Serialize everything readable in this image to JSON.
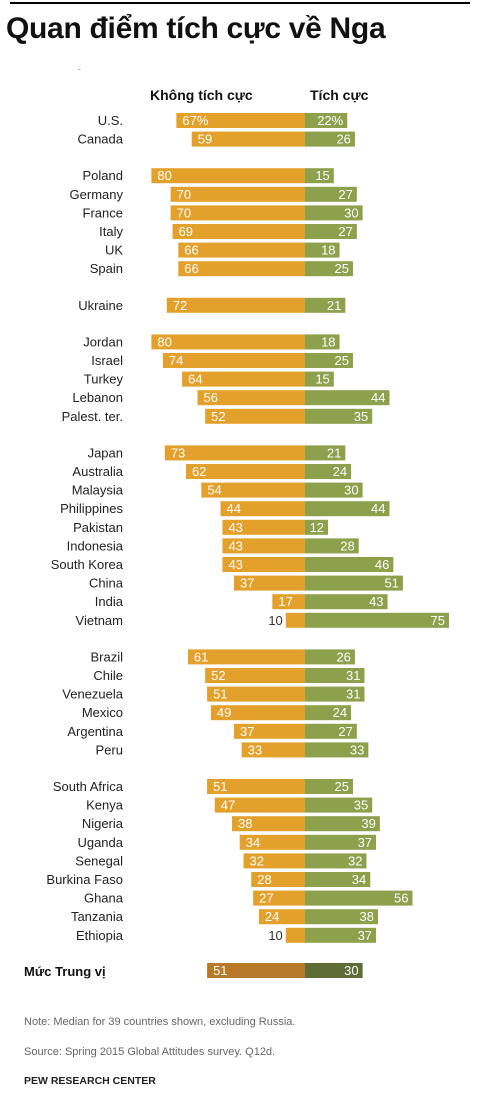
{
  "title": "Quan điểm tích cực về Nga",
  "headers": {
    "negative": "Không tích cực",
    "positive": "Tích cực"
  },
  "colors": {
    "negative": "#e3a12b",
    "positive": "#8da04c",
    "median_negative": "#b87a28",
    "median_positive": "#5f6c35"
  },
  "chart_data": {
    "type": "bar",
    "orientation": "horizontal-diverging",
    "series": [
      {
        "name": "Không tích cực",
        "direction": "left"
      },
      {
        "name": "Tích cực",
        "direction": "right"
      }
    ],
    "groups": [
      {
        "rows": [
          {
            "country": "U.S.",
            "neg": 67,
            "pos": 22,
            "neg_label": "67%",
            "pos_label": "22%"
          },
          {
            "country": "Canada",
            "neg": 59,
            "pos": 26,
            "neg_label": "59",
            "pos_label": "26"
          }
        ]
      },
      {
        "rows": [
          {
            "country": "Poland",
            "neg": 80,
            "pos": 15,
            "neg_label": "80",
            "pos_label": "15"
          },
          {
            "country": "Germany",
            "neg": 70,
            "pos": 27,
            "neg_label": "70",
            "pos_label": "27"
          },
          {
            "country": "France",
            "neg": 70,
            "pos": 30,
            "neg_label": "70",
            "pos_label": "30"
          },
          {
            "country": "Italy",
            "neg": 69,
            "pos": 27,
            "neg_label": "69",
            "pos_label": "27"
          },
          {
            "country": "UK",
            "neg": 66,
            "pos": 18,
            "neg_label": "66",
            "pos_label": "18"
          },
          {
            "country": "Spain",
            "neg": 66,
            "pos": 25,
            "neg_label": "66",
            "pos_label": "25"
          }
        ]
      },
      {
        "rows": [
          {
            "country": "Ukraine",
            "neg": 72,
            "pos": 21,
            "neg_label": "72",
            "pos_label": "21"
          }
        ]
      },
      {
        "rows": [
          {
            "country": "Jordan",
            "neg": 80,
            "pos": 18,
            "neg_label": "80",
            "pos_label": "18"
          },
          {
            "country": "Israel",
            "neg": 74,
            "pos": 25,
            "neg_label": "74",
            "pos_label": "25"
          },
          {
            "country": "Turkey",
            "neg": 64,
            "pos": 15,
            "neg_label": "64",
            "pos_label": "15"
          },
          {
            "country": "Lebanon",
            "neg": 56,
            "pos": 44,
            "neg_label": "56",
            "pos_label": "44"
          },
          {
            "country": "Palest. ter.",
            "neg": 52,
            "pos": 35,
            "neg_label": "52",
            "pos_label": "35"
          }
        ]
      },
      {
        "rows": [
          {
            "country": "Japan",
            "neg": 73,
            "pos": 21,
            "neg_label": "73",
            "pos_label": "21"
          },
          {
            "country": "Australia",
            "neg": 62,
            "pos": 24,
            "neg_label": "62",
            "pos_label": "24"
          },
          {
            "country": "Malaysia",
            "neg": 54,
            "pos": 30,
            "neg_label": "54",
            "pos_label": "30"
          },
          {
            "country": "Philippines",
            "neg": 44,
            "pos": 44,
            "neg_label": "44",
            "pos_label": "44"
          },
          {
            "country": "Pakistan",
            "neg": 43,
            "pos": 12,
            "neg_label": "43",
            "pos_label": "12"
          },
          {
            "country": "Indonesia",
            "neg": 43,
            "pos": 28,
            "neg_label": "43",
            "pos_label": "28"
          },
          {
            "country": "South Korea",
            "neg": 43,
            "pos": 46,
            "neg_label": "43",
            "pos_label": "46"
          },
          {
            "country": "China",
            "neg": 37,
            "pos": 51,
            "neg_label": "37",
            "pos_label": "51"
          },
          {
            "country": "India",
            "neg": 17,
            "pos": 43,
            "neg_label": "17",
            "pos_label": "43"
          },
          {
            "country": "Vietnam",
            "neg": 10,
            "pos": 75,
            "neg_label": "10",
            "pos_label": "75"
          }
        ]
      },
      {
        "rows": [
          {
            "country": "Brazil",
            "neg": 61,
            "pos": 26,
            "neg_label": "61",
            "pos_label": "26"
          },
          {
            "country": "Chile",
            "neg": 52,
            "pos": 31,
            "neg_label": "52",
            "pos_label": "31"
          },
          {
            "country": "Venezuela",
            "neg": 51,
            "pos": 31,
            "neg_label": "51",
            "pos_label": "31"
          },
          {
            "country": "Mexico",
            "neg": 49,
            "pos": 24,
            "neg_label": "49",
            "pos_label": "24"
          },
          {
            "country": "Argentina",
            "neg": 37,
            "pos": 27,
            "neg_label": "37",
            "pos_label": "27"
          },
          {
            "country": "Peru",
            "neg": 33,
            "pos": 33,
            "neg_label": "33",
            "pos_label": "33"
          }
        ]
      },
      {
        "rows": [
          {
            "country": "South Africa",
            "neg": 51,
            "pos": 25,
            "neg_label": "51",
            "pos_label": "25"
          },
          {
            "country": "Kenya",
            "neg": 47,
            "pos": 35,
            "neg_label": "47",
            "pos_label": "35"
          },
          {
            "country": "Nigeria",
            "neg": 38,
            "pos": 39,
            "neg_label": "38",
            "pos_label": "39"
          },
          {
            "country": "Uganda",
            "neg": 34,
            "pos": 37,
            "neg_label": "34",
            "pos_label": "37"
          },
          {
            "country": "Senegal",
            "neg": 32,
            "pos": 32,
            "neg_label": "32",
            "pos_label": "32"
          },
          {
            "country": "Burkina Faso",
            "neg": 28,
            "pos": 34,
            "neg_label": "28",
            "pos_label": "34"
          },
          {
            "country": "Ghana",
            "neg": 27,
            "pos": 56,
            "neg_label": "27",
            "pos_label": "56"
          },
          {
            "country": "Tanzania",
            "neg": 24,
            "pos": 38,
            "neg_label": "24",
            "pos_label": "38"
          },
          {
            "country": "Ethiopia",
            "neg": 10,
            "pos": 37,
            "neg_label": "10",
            "pos_label": "37"
          }
        ]
      }
    ],
    "median": {
      "label": "Mức Trung vị",
      "neg": 51,
      "pos": 30,
      "neg_label": "51",
      "pos_label": "30"
    }
  },
  "notes": {
    "note": "Note: Median for 39 countries shown, excluding Russia.",
    "source": "Source: Spring 2015 Global Attitudes survey. Q12d."
  },
  "brand": "PEW RESEARCH CENTER"
}
